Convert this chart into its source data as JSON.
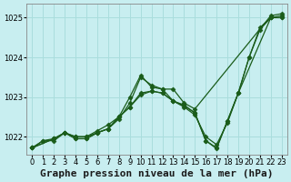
{
  "background_color": "#c8eef0",
  "grid_color": "#aadddd",
  "line_color": "#1a5c1a",
  "title": "Graphe pression niveau de la mer (hPa)",
  "xlim": [
    -0.5,
    23.5
  ],
  "ylim": [
    1021.55,
    1025.35
  ],
  "yticks": [
    1022,
    1023,
    1024,
    1025
  ],
  "xticks": [
    0,
    1,
    2,
    3,
    4,
    5,
    6,
    7,
    8,
    9,
    10,
    11,
    12,
    13,
    14,
    15,
    16,
    17,
    18,
    19,
    20,
    21,
    22,
    23
  ],
  "series": [
    {
      "x": [
        0,
        1,
        2,
        3,
        4,
        5,
        6,
        7,
        8,
        9,
        10,
        11,
        12,
        13,
        14,
        15,
        22,
        23
      ],
      "y": [
        1021.72,
        1021.9,
        1021.9,
        1022.1,
        1022.0,
        1022.0,
        1022.1,
        1022.2,
        1022.45,
        1022.85,
        1023.5,
        1023.3,
        1023.2,
        1023.2,
        1022.85,
        1022.7,
        1025.05,
        1025.1
      ]
    },
    {
      "x": [
        0,
        2,
        3,
        4,
        5,
        6,
        7,
        8,
        9,
        10,
        11,
        12,
        13,
        14,
        15,
        16,
        17,
        18,
        19,
        22,
        23
      ],
      "y": [
        1021.72,
        1021.95,
        1022.1,
        1022.0,
        1022.0,
        1022.15,
        1022.3,
        1022.5,
        1023.0,
        1023.55,
        1023.25,
        1023.2,
        1022.9,
        1022.75,
        1022.55,
        1022.0,
        1021.8,
        1022.35,
        1023.1,
        1025.0,
        1025.05
      ]
    },
    {
      "x": [
        0,
        2,
        3,
        4,
        5,
        6,
        7,
        8,
        9,
        10,
        11,
        12,
        13,
        14,
        15,
        16,
        17,
        18,
        19,
        20,
        21,
        22,
        23
      ],
      "y": [
        1021.72,
        1021.95,
        1022.1,
        1021.95,
        1021.95,
        1022.1,
        1022.2,
        1022.5,
        1022.75,
        1023.1,
        1023.15,
        1023.1,
        1022.9,
        1022.8,
        1022.6,
        1021.9,
        1021.72,
        1022.4,
        1023.1,
        1024.0,
        1024.75,
        1025.0,
        1025.0
      ]
    },
    {
      "x": [
        0,
        1,
        2,
        3,
        4,
        5,
        6,
        7,
        8,
        9,
        10,
        11,
        12,
        13,
        14,
        15,
        16,
        17,
        18,
        19,
        20,
        21,
        22,
        23
      ],
      "y": [
        1021.72,
        1021.9,
        1021.95,
        1022.1,
        1021.95,
        1021.95,
        1022.1,
        1022.2,
        1022.5,
        1022.75,
        1023.05,
        1023.15,
        1023.1,
        1022.9,
        1022.78,
        1022.6,
        1021.9,
        1021.7,
        1022.4,
        1023.1,
        1024.0,
        1024.7,
        1025.0,
        1025.0
      ]
    }
  ],
  "marker": "D",
  "markersize": 2.5,
  "linewidth": 0.9,
  "title_fontsize": 8,
  "tick_fontsize": 6
}
